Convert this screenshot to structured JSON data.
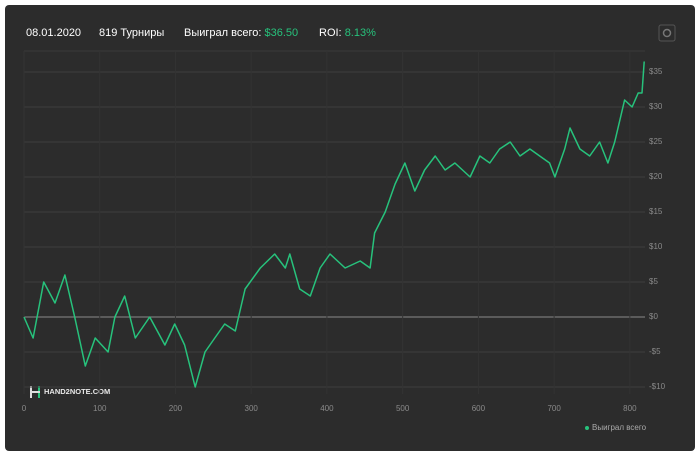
{
  "chart_data": {
    "type": "line",
    "header": {
      "date": "08.01.2020",
      "tournaments": "819 Турниры",
      "won_label": "Выиграл всего:",
      "won_value": "$36.50",
      "roi_label": "ROI:",
      "roi_value": "8.13%"
    },
    "watermark": "HAND2NOTE.COM",
    "x": [
      0,
      12,
      26,
      41,
      54,
      67,
      81,
      94,
      111,
      120,
      133,
      147,
      166,
      176,
      186,
      199,
      212,
      226,
      239,
      252,
      265,
      279,
      292,
      312,
      331,
      345,
      351,
      364,
      378,
      391,
      404,
      424,
      444,
      457,
      463,
      477,
      490,
      503,
      516,
      529,
      543,
      556,
      569,
      589,
      602,
      615,
      628,
      642,
      655,
      668,
      681,
      694,
      701,
      714,
      721,
      734,
      747,
      760,
      771,
      780,
      793,
      803,
      811,
      816,
      819
    ],
    "series": [
      {
        "name": "Выиграл всего",
        "color": "#27c27c",
        "values": [
          0,
          -3,
          5,
          2,
          6,
          0,
          -7,
          -3,
          -5,
          0,
          3,
          -3,
          0,
          -2,
          -4,
          -1,
          -4,
          -10,
          -5,
          -3,
          -1,
          -2,
          4,
          7,
          9,
          7,
          9,
          4,
          3,
          7,
          9,
          7,
          8,
          7,
          12,
          15,
          19,
          22,
          18,
          21,
          23,
          21,
          22,
          20,
          23,
          22,
          24,
          25,
          23,
          24,
          23,
          22,
          20,
          24,
          27,
          24,
          23,
          25,
          22,
          25,
          31,
          30,
          32,
          32,
          36.5
        ]
      }
    ],
    "xlim": [
      0,
      820
    ],
    "xticks": [
      0,
      100,
      200,
      300,
      400,
      500,
      600,
      700,
      800
    ],
    "ylim": [
      -11,
      38
    ],
    "yticks": [
      {
        "value": -10,
        "label": "-$10"
      },
      {
        "value": -5,
        "label": "-$5"
      },
      {
        "value": 0,
        "label": "$0"
      },
      {
        "value": 5,
        "label": "$5"
      },
      {
        "value": 10,
        "label": "$10"
      },
      {
        "value": 15,
        "label": "$15"
      },
      {
        "value": 20,
        "label": "$20"
      },
      {
        "value": 25,
        "label": "$25"
      },
      {
        "value": 30,
        "label": "$30"
      },
      {
        "value": 35,
        "label": "$35"
      }
    ],
    "grid": true
  }
}
